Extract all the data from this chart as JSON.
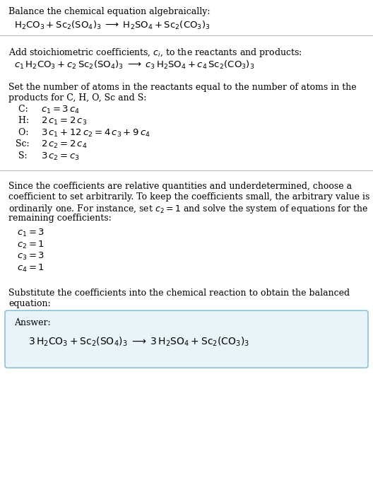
{
  "bg_color": "#ffffff",
  "text_color": "#000000",
  "box_bg_color": "#e8f4f8",
  "box_edge_color": "#7ab8cc",
  "section1_title": "Balance the chemical equation algebraically:",
  "section1_eq": "$\\mathrm{H_2CO_3 + Sc_2(SO_4)_3 \\;\\longrightarrow\\; H_2SO_4 + Sc_2(CO_3)_3}$",
  "section2_title": "Add stoichiometric coefficients, $c_i$, to the reactants and products:",
  "section2_eq": "$c_1\\,\\mathrm{H_2CO_3} + c_2\\,\\mathrm{Sc_2(SO_4)_3} \\;\\longrightarrow\\; c_3\\,\\mathrm{H_2SO_4} + c_4\\,\\mathrm{Sc_2(CO_3)_3}$",
  "section3_title_line1": "Set the number of atoms in the reactants equal to the number of atoms in the",
  "section3_title_line2": "products for C, H, O, Sc and S:",
  "section3_lines": [
    [
      " C:",
      "$c_1 = 3\\,c_4$"
    ],
    [
      " H:",
      "$2\\,c_1 = 2\\,c_3$"
    ],
    [
      " O:",
      "$3\\,c_1 + 12\\,c_2 = 4\\,c_3 + 9\\,c_4$"
    ],
    [
      "Sc:",
      "$2\\,c_2 = 2\\,c_4$"
    ],
    [
      " S:",
      "$3\\,c_2 = c_3$"
    ]
  ],
  "section4_title_lines": [
    "Since the coefficients are relative quantities and underdetermined, choose a",
    "coefficient to set arbitrarily. To keep the coefficients small, the arbitrary value is",
    "ordinarily one. For instance, set $c_2 = 1$ and solve the system of equations for the",
    "remaining coefficients:"
  ],
  "section4_lines": [
    "$c_1 = 3$",
    "$c_2 = 1$",
    "$c_3 = 3$",
    "$c_4 = 1$"
  ],
  "section5_title_line1": "Substitute the coefficients into the chemical reaction to obtain the balanced",
  "section5_title_line2": "equation:",
  "answer_label": "Answer:",
  "answer_eq": "$3\\,\\mathrm{H_2CO_3} + \\mathrm{Sc_2(SO_4)_3} \\;\\longrightarrow\\; 3\\,\\mathrm{H_2SO_4} + \\mathrm{Sc_2(CO_3)_3}$"
}
